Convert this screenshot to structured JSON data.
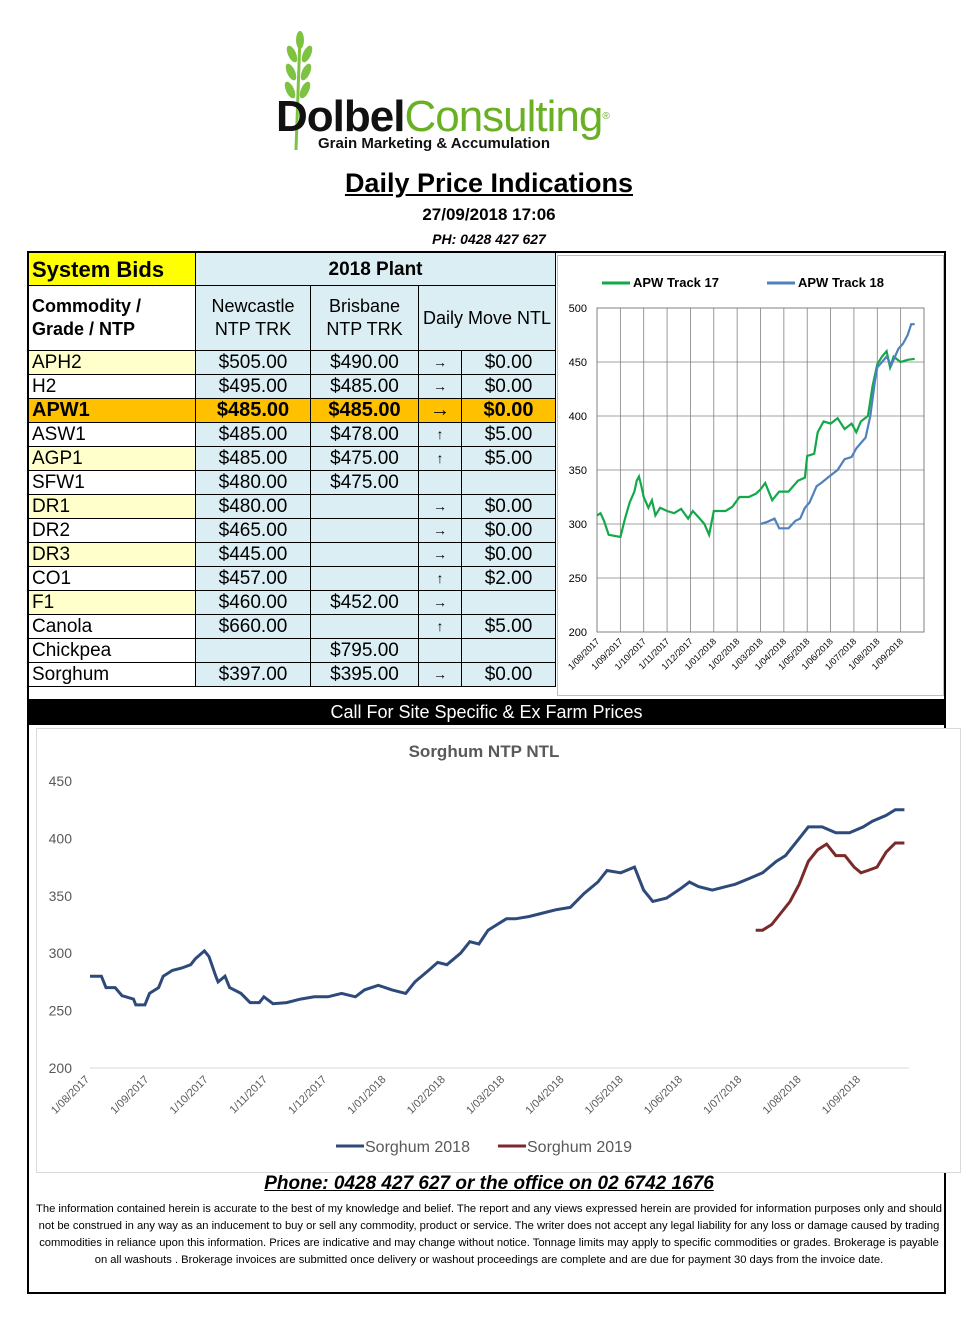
{
  "header": {
    "brand_part1": "Dolbel",
    "brand_part2": "Consulting",
    "brand_mark": "®",
    "tagline": "Grain Marketing & Accumulation",
    "title": "Daily Price Indications",
    "datetime": "27/09/2018 17:06",
    "phone": "PH: 0428 427 627",
    "logo_icon": "wheat-icon"
  },
  "table": {
    "system_bids": "System Bids",
    "plant": "2018 Plant",
    "commodity_header": "Commodity / Grade / NTP",
    "col_newcastle": "Newcastle NTP TRK",
    "col_brisbane": "Brisbane NTP TRK",
    "col_daily": "Daily  Move NTL",
    "rows": [
      {
        "grade": "APH2",
        "newcastle": "$505.00",
        "brisbane": "$490.00",
        "arrow": "→",
        "move": "$0.00"
      },
      {
        "grade": "H2",
        "newcastle": "$495.00",
        "brisbane": "$485.00",
        "arrow": "→",
        "move": "$0.00"
      },
      {
        "grade": "APW1",
        "newcastle": "$485.00",
        "brisbane": "$485.00",
        "arrow": "→",
        "move": "$0.00"
      },
      {
        "grade": "ASW1",
        "newcastle": "$485.00",
        "brisbane": "$478.00",
        "arrow": "↑",
        "move": "$5.00"
      },
      {
        "grade": "AGP1",
        "newcastle": "$485.00",
        "brisbane": "$475.00",
        "arrow": "↑",
        "move": "$5.00"
      },
      {
        "grade": "SFW1",
        "newcastle": "$480.00",
        "brisbane": "$475.00",
        "arrow": "",
        "move": ""
      },
      {
        "grade": "DR1",
        "newcastle": "$480.00",
        "brisbane": "",
        "arrow": "→",
        "move": "$0.00"
      },
      {
        "grade": "DR2",
        "newcastle": "$465.00",
        "brisbane": "",
        "arrow": "→",
        "move": "$0.00"
      },
      {
        "grade": "DR3",
        "newcastle": "$445.00",
        "brisbane": "",
        "arrow": "→",
        "move": "$0.00"
      },
      {
        "grade": "CO1",
        "newcastle": "$457.00",
        "brisbane": "",
        "arrow": "↑",
        "move": "$2.00"
      },
      {
        "grade": "F1",
        "newcastle": "$460.00",
        "brisbane": "$452.00",
        "arrow": "→",
        "move": ""
      },
      {
        "grade": "Canola",
        "newcastle": "$660.00",
        "brisbane": "",
        "arrow": "↑",
        "move": "$5.00"
      },
      {
        "grade": "Chickpea",
        "newcastle": "",
        "brisbane": "$795.00",
        "arrow": "",
        "move": ""
      },
      {
        "grade": "Sorghum",
        "newcastle": "$397.00",
        "brisbane": "$395.00",
        "arrow": "→",
        "move": "$0.00"
      }
    ]
  },
  "callbar": "Call For Site Specific & Ex Farm Prices",
  "chart_data": [
    {
      "type": "line",
      "title": "",
      "xlabel": "",
      "ylabel": "",
      "ylim": [
        200,
        500
      ],
      "yticks": [
        200,
        250,
        300,
        350,
        400,
        450,
        500
      ],
      "x_tick_labels": [
        "1/08/2017",
        "1/09/2017",
        "1/10/2017",
        "1/11/2017",
        "1/12/2017",
        "1/01/2018",
        "1/02/2018",
        "1/03/2018",
        "1/04/2018",
        "1/05/2018",
        "1/06/2018",
        "1/07/2018",
        "1/08/2018",
        "1/09/2018"
      ],
      "x_months_range": [
        0,
        14
      ],
      "grid": true,
      "legend": "top",
      "series": [
        {
          "name": "APW Track 17",
          "color": "#13a84a",
          "points": [
            [
              0,
              308
            ],
            [
              0.15,
              310
            ],
            [
              0.3,
              303
            ],
            [
              0.5,
              290
            ],
            [
              1.0,
              288
            ],
            [
              1.2,
              305
            ],
            [
              1.4,
              320
            ],
            [
              1.6,
              330
            ],
            [
              1.7,
              340
            ],
            [
              1.8,
              344
            ],
            [
              1.9,
              335
            ],
            [
              2.0,
              325
            ],
            [
              2.2,
              315
            ],
            [
              2.35,
              322
            ],
            [
              2.5,
              308
            ],
            [
              2.7,
              315
            ],
            [
              3.0,
              312
            ],
            [
              3.3,
              310
            ],
            [
              3.6,
              314
            ],
            [
              3.9,
              305
            ],
            [
              4.1,
              312
            ],
            [
              4.4,
              305
            ],
            [
              4.6,
              300
            ],
            [
              4.8,
              290
            ],
            [
              5.0,
              312
            ],
            [
              5.5,
              312
            ],
            [
              5.8,
              316
            ],
            [
              6.1,
              325
            ],
            [
              6.5,
              325
            ],
            [
              6.8,
              328
            ],
            [
              7.0,
              332
            ],
            [
              7.2,
              338
            ],
            [
              7.5,
              322
            ],
            [
              7.8,
              330
            ],
            [
              8.2,
              330
            ],
            [
              8.6,
              340
            ],
            [
              8.9,
              343
            ],
            [
              9.0,
              363
            ],
            [
              9.3,
              365
            ],
            [
              9.45,
              385
            ],
            [
              9.7,
              395
            ],
            [
              10.0,
              393
            ],
            [
              10.3,
              398
            ],
            [
              10.6,
              388
            ],
            [
              10.9,
              393
            ],
            [
              11.1,
              385
            ],
            [
              11.3,
              395
            ],
            [
              11.6,
              400
            ],
            [
              11.8,
              428
            ],
            [
              12.0,
              448
            ],
            [
              12.2,
              455
            ],
            [
              12.4,
              460
            ],
            [
              12.55,
              445
            ],
            [
              12.7,
              455
            ],
            [
              13.0,
              450
            ],
            [
              13.3,
              452
            ],
            [
              13.6,
              453
            ]
          ]
        },
        {
          "name": "APW Track 18",
          "color": "#4f81bd",
          "points": [
            [
              7.0,
              300
            ],
            [
              7.3,
              302
            ],
            [
              7.6,
              305
            ],
            [
              7.8,
              296
            ],
            [
              8.2,
              296
            ],
            [
              8.5,
              303
            ],
            [
              8.7,
              305
            ],
            [
              8.9,
              315
            ],
            [
              9.1,
              320
            ],
            [
              9.4,
              335
            ],
            [
              9.6,
              338
            ],
            [
              10.0,
              345
            ],
            [
              10.3,
              350
            ],
            [
              10.6,
              360
            ],
            [
              10.9,
              362
            ],
            [
              11.1,
              370
            ],
            [
              11.3,
              375
            ],
            [
              11.5,
              380
            ],
            [
              11.7,
              400
            ],
            [
              11.9,
              432
            ],
            [
              12.0,
              445
            ],
            [
              12.2,
              450
            ],
            [
              12.4,
              455
            ],
            [
              12.6,
              447
            ],
            [
              12.9,
              462
            ],
            [
              13.1,
              467
            ],
            [
              13.3,
              475
            ],
            [
              13.45,
              485
            ],
            [
              13.6,
              485
            ]
          ]
        }
      ]
    },
    {
      "type": "line",
      "title": "Sorghum  NTP NTL",
      "xlabel": "",
      "ylabel": "",
      "ylim": [
        200,
        450
      ],
      "yticks": [
        200,
        250,
        300,
        350,
        400,
        450
      ],
      "x_tick_labels": [
        "1/08/2017",
        "1/09/2017",
        "1/10/2017",
        "1/11/2017",
        "1/12/2017",
        "1/01/2018",
        "1/02/2018",
        "1/03/2018",
        "1/04/2018",
        "1/05/2018",
        "1/06/2018",
        "1/07/2018",
        "1/08/2018",
        "1/09/2018"
      ],
      "x_months_range": [
        0,
        14.0
      ],
      "grid": false,
      "legend": "bottom",
      "series": [
        {
          "name": "Sorghum 2018",
          "color": "#2e4a7a",
          "points": [
            [
              0,
              280
            ],
            [
              0.25,
              280
            ],
            [
              0.35,
              270
            ],
            [
              0.55,
              270
            ],
            [
              0.7,
              263
            ],
            [
              0.95,
              260
            ],
            [
              1.0,
              255
            ],
            [
              1.2,
              255
            ],
            [
              1.3,
              265
            ],
            [
              1.5,
              270
            ],
            [
              1.6,
              280
            ],
            [
              1.8,
              285
            ],
            [
              2.0,
              287
            ],
            [
              2.2,
              290
            ],
            [
              2.3,
              295
            ],
            [
              2.5,
              302
            ],
            [
              2.6,
              297
            ],
            [
              2.75,
              280
            ],
            [
              2.8,
              275
            ],
            [
              2.95,
              280
            ],
            [
              3.05,
              270
            ],
            [
              3.3,
              265
            ],
            [
              3.5,
              257
            ],
            [
              3.7,
              257
            ],
            [
              3.8,
              262
            ],
            [
              4.0,
              256
            ],
            [
              4.3,
              257
            ],
            [
              4.6,
              260
            ],
            [
              4.9,
              262
            ],
            [
              5.2,
              262
            ],
            [
              5.5,
              265
            ],
            [
              5.8,
              262
            ],
            [
              6.0,
              268
            ],
            [
              6.3,
              272
            ],
            [
              6.6,
              268
            ],
            [
              6.9,
              265
            ],
            [
              7.1,
              275
            ],
            [
              7.4,
              285
            ],
            [
              7.6,
              292
            ],
            [
              7.8,
              290
            ],
            [
              8.1,
              300
            ],
            [
              8.3,
              310
            ],
            [
              8.5,
              308
            ],
            [
              8.7,
              320
            ],
            [
              8.9,
              325
            ],
            [
              9.1,
              330
            ],
            [
              9.3,
              330
            ],
            [
              9.6,
              332
            ],
            [
              9.9,
              335
            ],
            [
              10.2,
              338
            ],
            [
              10.5,
              340
            ],
            [
              10.8,
              352
            ],
            [
              11.1,
              362
            ],
            [
              11.3,
              372
            ],
            [
              11.6,
              370
            ],
            [
              11.9,
              375
            ],
            [
              12.1,
              355
            ],
            [
              12.3,
              345
            ],
            [
              12.6,
              348
            ],
            [
              12.9,
              356
            ],
            [
              13.1,
              362
            ],
            [
              13.3,
              358
            ],
            [
              13.6,
              355
            ],
            [
              13.9,
              358
            ],
            [
              14.1,
              360
            ],
            [
              14.4,
              365
            ],
            [
              14.7,
              370
            ],
            [
              15.0,
              380
            ],
            [
              15.2,
              385
            ],
            [
              15.5,
              400
            ],
            [
              15.7,
              410
            ],
            [
              16.0,
              410
            ],
            [
              16.3,
              405
            ],
            [
              16.6,
              405
            ],
            [
              16.9,
              410
            ],
            [
              17.1,
              415
            ],
            [
              17.4,
              420
            ],
            [
              17.6,
              425
            ],
            [
              17.8,
              425
            ]
          ]
        },
        {
          "name": "Sorghum 2019",
          "color": "#7b2a2a",
          "points": [
            [
              14.55,
              320
            ],
            [
              14.7,
              320
            ],
            [
              14.9,
              325
            ],
            [
              15.1,
              335
            ],
            [
              15.3,
              345
            ],
            [
              15.5,
              360
            ],
            [
              15.7,
              380
            ],
            [
              15.9,
              390
            ],
            [
              16.1,
              395
            ],
            [
              16.3,
              385
            ],
            [
              16.5,
              385
            ],
            [
              16.7,
              375
            ],
            [
              16.85,
              370
            ],
            [
              17.0,
              372
            ],
            [
              17.2,
              375
            ],
            [
              17.4,
              388
            ],
            [
              17.6,
              396
            ],
            [
              17.8,
              396
            ]
          ]
        }
      ]
    }
  ],
  "footer": {
    "phone": "Phone: 0428 427 627 or the office on 02 6742 1676",
    "disclaimer": "The information contained herein is accurate to the best of my knowledge and belief.  The report and any views expressed herein are provided for information purposes only and should not be construed in any way as an inducement to buy or sell any commodity, product or service. The writer does not accept any legal liability for any loss or damage caused by trading commodities in reliance upon this information. Prices are indicative and may change without notice. Tonnage limits may apply to specific commodities or grades.  Brokerage is payable on all washouts . Brokerage invoices are submitted once delivery or washout proceedings are complete and are due for payment 30 days from the invoice date."
  }
}
